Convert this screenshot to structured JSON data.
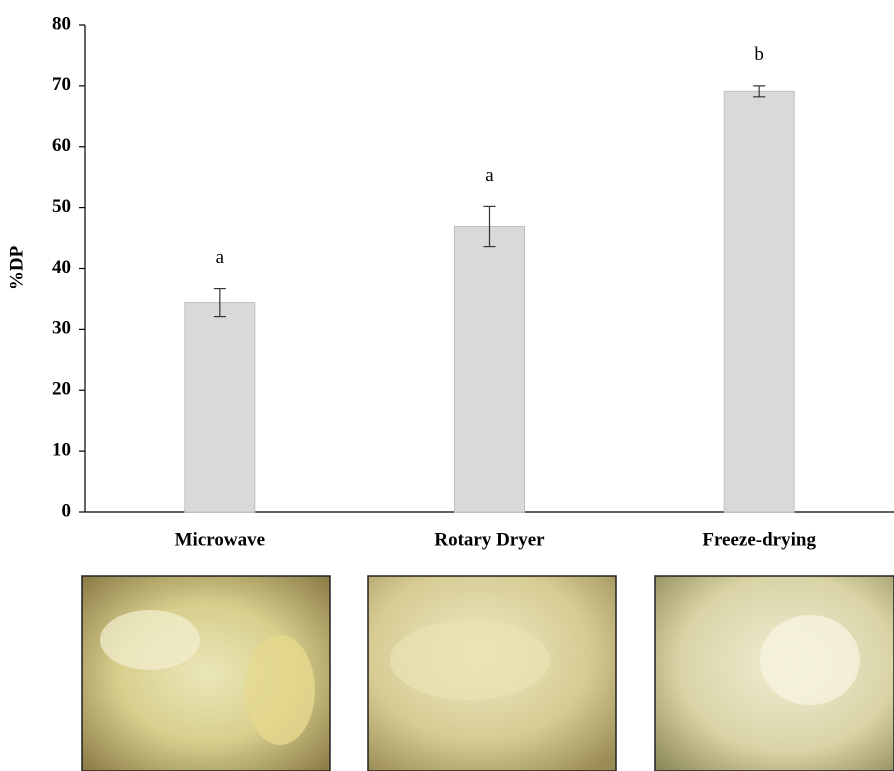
{
  "chart_data": {
    "type": "bar",
    "y_label": "%DP",
    "categories": [
      "Microwave",
      "Rotary Dryer",
      "Freeze-drying"
    ],
    "values": [
      34.4,
      46.9,
      69.1
    ],
    "errors": [
      2.3,
      3.3,
      0.9
    ],
    "annotations": [
      "a",
      "a",
      "b"
    ],
    "color": "#d9d9d9",
    "ylim": [
      0,
      80
    ],
    "yticks": [
      0,
      10,
      20,
      30,
      40,
      50,
      60,
      70,
      80
    ],
    "grid": false
  }
}
